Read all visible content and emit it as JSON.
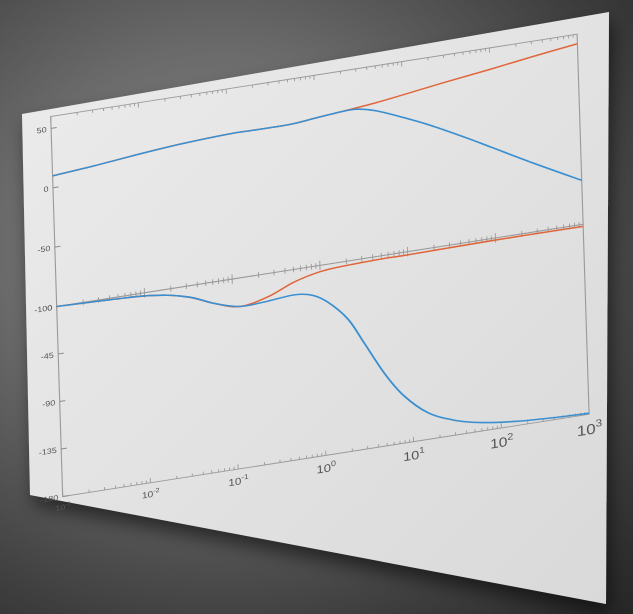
{
  "chart_data": [
    {
      "type": "line",
      "x_scale": "log",
      "xlim": [
        0.001,
        1000
      ],
      "ylim": [
        -100,
        60
      ],
      "yticks": [
        50,
        0,
        -50,
        -100
      ],
      "ytick_labels": [
        "50",
        "0",
        "-50",
        "-100"
      ],
      "grid": false,
      "series": [
        {
          "color": "#e0653a",
          "x": [
            0.001,
            0.003,
            0.01,
            0.03,
            0.1,
            0.2,
            0.5,
            1,
            2,
            5,
            10,
            30,
            100,
            300,
            1000
          ],
          "y": [
            10,
            13,
            17,
            20,
            22,
            22,
            22,
            24,
            26,
            29,
            32,
            37,
            42,
            47,
            52
          ]
        },
        {
          "color": "#3a8fd0",
          "x": [
            0.001,
            0.003,
            0.01,
            0.03,
            0.1,
            0.2,
            0.5,
            1,
            2,
            3,
            5,
            10,
            20,
            50,
            100,
            300,
            1000
          ],
          "y": [
            10,
            13,
            17,
            20,
            22,
            22,
            22,
            24,
            26,
            26,
            22,
            13,
            3,
            -12,
            -24,
            -43,
            -63
          ]
        }
      ]
    },
    {
      "type": "line",
      "x_scale": "log",
      "xlim": [
        0.001,
        1000
      ],
      "ylim": [
        -180,
        0
      ],
      "yticks": [
        0,
        -45,
        -90,
        -135,
        -180
      ],
      "ytick_labels": [
        "0",
        "-45",
        "-90",
        "-135",
        "-180"
      ],
      "xtick_labels": [
        "10-3",
        "10-2",
        "10-1",
        "100",
        "101",
        "102",
        "103"
      ],
      "grid": false,
      "series": [
        {
          "color": "#e0653a",
          "x": [
            0.001,
            0.01,
            0.03,
            0.06,
            0.12,
            0.25,
            0.5,
            1,
            2,
            5,
            10,
            100,
            1000
          ],
          "y": [
            0,
            -3,
            -10,
            -20,
            -27,
            -22,
            -12,
            -6,
            -4,
            -3,
            -3,
            -2,
            -2
          ]
        },
        {
          "color": "#3a8fd0",
          "x": [
            0.001,
            0.01,
            0.03,
            0.06,
            0.12,
            0.25,
            0.5,
            0.8,
            1.2,
            2,
            3,
            5,
            8,
            15,
            30,
            60,
            150,
            400,
            1000
          ],
          "y": [
            0,
            -3,
            -10,
            -20,
            -27,
            -26,
            -24,
            -27,
            -36,
            -55,
            -80,
            -112,
            -135,
            -155,
            -166,
            -172,
            -176,
            -178,
            -179
          ]
        }
      ]
    }
  ]
}
